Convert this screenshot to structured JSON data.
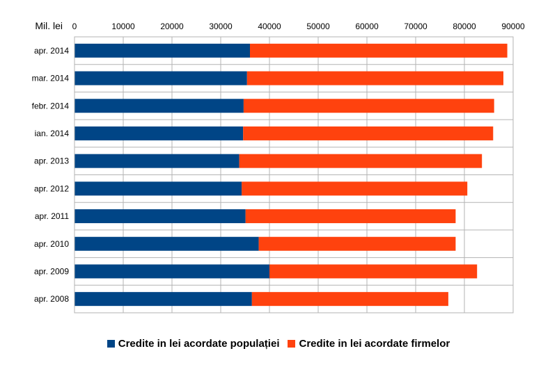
{
  "chart_data": {
    "type": "bar",
    "orientation": "horizontal",
    "stacked": true,
    "unit_label": "Mil. lei",
    "categories": [
      "apr. 2014",
      "mar. 2014",
      "febr. 2014",
      "ian. 2014",
      "apr. 2013",
      "apr. 2012",
      "apr. 2011",
      "apr. 2010",
      "apr. 2009",
      "apr. 2008"
    ],
    "series": [
      {
        "name": "Credite in lei acordate populației",
        "color": "#004586",
        "values": [
          36000,
          35400,
          34700,
          34600,
          33800,
          34300,
          35100,
          37800,
          40000,
          36400
        ]
      },
      {
        "name": "Credite in lei acordate firmelor",
        "color": "#ff420e",
        "values": [
          52800,
          52600,
          51400,
          51300,
          49800,
          46300,
          43100,
          40400,
          42600,
          40300
        ]
      }
    ],
    "xlim": [
      0,
      90000
    ],
    "xticks": [
      "0",
      "10000",
      "20000",
      "30000",
      "40000",
      "50000",
      "60000",
      "70000",
      "80000",
      "90000"
    ],
    "x_axis_position": "top",
    "grid": true,
    "legend_position": "bottom"
  }
}
